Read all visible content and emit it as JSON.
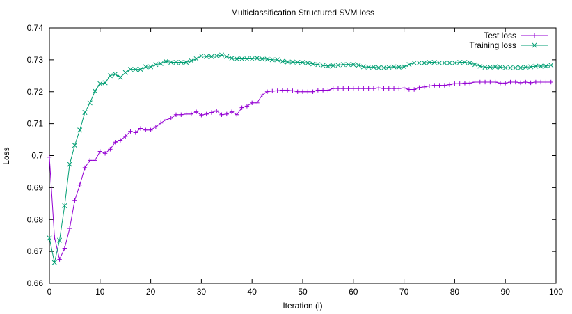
{
  "chart_data": {
    "type": "line",
    "title": "Multiclassification Structured SVM loss",
    "xlabel": "Iteration (i)",
    "ylabel": "Loss",
    "xlim": [
      0,
      100
    ],
    "ylim": [
      0.66,
      0.74
    ],
    "xticks": [
      0,
      10,
      20,
      30,
      40,
      50,
      60,
      70,
      80,
      90,
      100
    ],
    "yticks": [
      0.66,
      0.67,
      0.68,
      0.69,
      0.7,
      0.71,
      0.72,
      0.73,
      0.74
    ],
    "ytick_labels": [
      "0.66",
      "0.67",
      "0.68",
      "0.69",
      "0.7",
      "0.71",
      "0.72",
      "0.73",
      "0.74"
    ],
    "grid": false,
    "legend_position": "top-right",
    "series": [
      {
        "name": "Test loss",
        "color": "#9400d3",
        "marker": "plus",
        "values": [
          0.6995,
          0.6745,
          0.6675,
          0.671,
          0.6772,
          0.686,
          0.6908,
          0.6962,
          0.6985,
          0.6985,
          0.7013,
          0.7007,
          0.702,
          0.7042,
          0.7048,
          0.706,
          0.7076,
          0.7072,
          0.7085,
          0.708,
          0.708,
          0.709,
          0.7102,
          0.7112,
          0.7117,
          0.7128,
          0.7128,
          0.713,
          0.713,
          0.7137,
          0.7127,
          0.713,
          0.7135,
          0.714,
          0.7128,
          0.713,
          0.7137,
          0.7128,
          0.715,
          0.7155,
          0.7165,
          0.7165,
          0.719,
          0.72,
          0.7202,
          0.7203,
          0.7205,
          0.7205,
          0.7203,
          0.72,
          0.72,
          0.72,
          0.72,
          0.7205,
          0.7205,
          0.7205,
          0.721,
          0.721,
          0.721,
          0.721,
          0.721,
          0.721,
          0.721,
          0.721,
          0.721,
          0.7212,
          0.721,
          0.721,
          0.721,
          0.721,
          0.7212,
          0.7207,
          0.7207,
          0.7213,
          0.7215,
          0.7218,
          0.722,
          0.722,
          0.722,
          0.7222,
          0.7225,
          0.7225,
          0.7227,
          0.7227,
          0.723,
          0.723,
          0.723,
          0.723,
          0.723,
          0.7227,
          0.7227,
          0.723,
          0.723,
          0.7228,
          0.723,
          0.7228,
          0.723,
          0.723,
          0.723,
          0.723
        ]
      },
      {
        "name": "Training loss",
        "color": "#009e73",
        "marker": "cross",
        "values": [
          0.6742,
          0.6665,
          0.6735,
          0.6843,
          0.6973,
          0.7032,
          0.708,
          0.7135,
          0.7165,
          0.7202,
          0.7225,
          0.7228,
          0.725,
          0.7255,
          0.7245,
          0.726,
          0.727,
          0.727,
          0.727,
          0.7278,
          0.7278,
          0.7285,
          0.7288,
          0.7295,
          0.7292,
          0.7292,
          0.7292,
          0.7292,
          0.7297,
          0.7303,
          0.7312,
          0.731,
          0.731,
          0.7312,
          0.7315,
          0.731,
          0.7305,
          0.7303,
          0.7303,
          0.7303,
          0.7303,
          0.7305,
          0.7303,
          0.7302,
          0.73,
          0.73,
          0.7295,
          0.7293,
          0.7293,
          0.7292,
          0.7292,
          0.729,
          0.7287,
          0.7285,
          0.7282,
          0.728,
          0.7282,
          0.7283,
          0.7285,
          0.7285,
          0.7285,
          0.7283,
          0.7278,
          0.7277,
          0.7277,
          0.7275,
          0.7275,
          0.7277,
          0.7278,
          0.7277,
          0.7278,
          0.7285,
          0.729,
          0.729,
          0.729,
          0.7292,
          0.7292,
          0.729,
          0.729,
          0.729,
          0.729,
          0.7292,
          0.7292,
          0.729,
          0.7285,
          0.728,
          0.7277,
          0.7277,
          0.7278,
          0.7277,
          0.7275,
          0.7275,
          0.7275,
          0.7275,
          0.7277,
          0.7278,
          0.728,
          0.728,
          0.728,
          0.7283
        ]
      }
    ]
  }
}
